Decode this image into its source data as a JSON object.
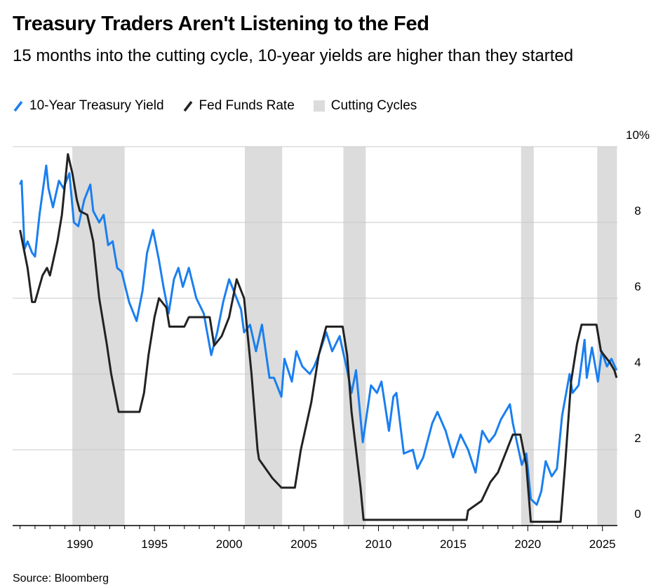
{
  "chart_data": {
    "type": "line",
    "title": "Treasury Traders Aren't Listening to the Fed",
    "subtitle": "15 months into the cutting cycle, 10-year yields are higher than they started",
    "source": "Source: Bloomberg",
    "xlim": [
      1985.5,
      2026
    ],
    "xticks": [
      1990,
      1995,
      2000,
      2005,
      2010,
      2015,
      2020,
      2025
    ],
    "xminorticks": [
      1986,
      1987,
      1988,
      1989,
      1991,
      1992,
      1993,
      1994,
      1996,
      1997,
      1998,
      1999,
      2001,
      2002,
      2003,
      2004,
      2006,
      2007,
      2008,
      2009,
      2011,
      2012,
      2013,
      2014,
      2016,
      2017,
      2018,
      2019,
      2021,
      2022,
      2023,
      2024
    ],
    "ylim": [
      0,
      10
    ],
    "yticks": [
      0,
      2,
      4,
      6,
      8,
      {
        "value": 10,
        "label": "10%"
      }
    ],
    "grid": true,
    "shading": {
      "name": "Cutting Cycles",
      "color": "#dcdcdc",
      "ranges": [
        [
          1989.5,
          1993.0
        ],
        [
          2001.05,
          2003.55
        ],
        [
          2007.65,
          2009.15
        ],
        [
          2019.55,
          2020.4
        ],
        [
          2024.65,
          2025.97
        ]
      ]
    },
    "series": [
      {
        "name": "10-Year Treasury Yield",
        "color": "#1a7ff0",
        "x": [
          1986.0,
          1986.1,
          1986.3,
          1986.5,
          1986.8,
          1987.0,
          1987.3,
          1987.75,
          1987.9,
          1988.2,
          1988.6,
          1988.9,
          1989.3,
          1989.6,
          1989.9,
          1990.3,
          1990.7,
          1990.9,
          1991.3,
          1991.6,
          1991.9,
          1992.2,
          1992.5,
          1992.8,
          1993.3,
          1993.8,
          1994.2,
          1994.5,
          1994.9,
          1995.3,
          1995.6,
          1995.95,
          1996.3,
          1996.6,
          1996.9,
          1997.3,
          1997.8,
          1998.3,
          1998.8,
          1999.2,
          1999.6,
          2000.0,
          2000.3,
          2000.8,
          2001.0,
          2001.4,
          2001.8,
          2002.2,
          2002.7,
          2003.0,
          2003.5,
          2003.7,
          2004.2,
          2004.5,
          2004.9,
          2005.4,
          2005.7,
          2006.0,
          2006.5,
          2006.9,
          2007.4,
          2007.9,
          2008.2,
          2008.5,
          2008.95,
          2009.5,
          2009.9,
          2010.2,
          2010.7,
          2011.0,
          2011.2,
          2011.7,
          2012.3,
          2012.6,
          2013.0,
          2013.6,
          2013.95,
          2014.5,
          2015.0,
          2015.5,
          2016.0,
          2016.5,
          2016.95,
          2017.4,
          2017.8,
          2018.2,
          2018.8,
          2019.0,
          2019.6,
          2019.9,
          2020.2,
          2020.6,
          2020.9,
          2021.2,
          2021.6,
          2021.95,
          2022.3,
          2022.8,
          2023.0,
          2023.4,
          2023.8,
          2023.95,
          2024.3,
          2024.7,
          2024.95,
          2025.3,
          2025.6,
          2025.95
        ],
        "values": [
          9.0,
          9.1,
          7.3,
          7.5,
          7.2,
          7.1,
          8.2,
          9.5,
          8.9,
          8.4,
          9.1,
          8.9,
          9.3,
          8.0,
          7.9,
          8.6,
          9.0,
          8.3,
          8.0,
          8.2,
          7.4,
          7.5,
          6.8,
          6.7,
          5.9,
          5.4,
          6.2,
          7.2,
          7.8,
          7.0,
          6.3,
          5.6,
          6.5,
          6.8,
          6.3,
          6.8,
          6.0,
          5.6,
          4.5,
          5.1,
          5.9,
          6.5,
          6.2,
          5.7,
          5.1,
          5.3,
          4.6,
          5.3,
          3.9,
          3.9,
          3.4,
          4.4,
          3.8,
          4.6,
          4.2,
          4.0,
          4.2,
          4.5,
          5.1,
          4.6,
          5.0,
          4.1,
          3.5,
          4.1,
          2.2,
          3.7,
          3.5,
          3.8,
          2.5,
          3.4,
          3.5,
          1.9,
          2.0,
          1.5,
          1.8,
          2.7,
          3.0,
          2.5,
          1.8,
          2.4,
          2.0,
          1.4,
          2.5,
          2.2,
          2.4,
          2.8,
          3.2,
          2.7,
          1.6,
          1.9,
          0.7,
          0.55,
          0.9,
          1.7,
          1.3,
          1.5,
          2.9,
          4.0,
          3.5,
          3.7,
          4.9,
          3.9,
          4.7,
          3.8,
          4.6,
          4.2,
          4.4,
          4.1
        ]
      },
      {
        "name": "Fed Funds Rate",
        "color": "#222222",
        "x": [
          1986.0,
          1986.5,
          1986.8,
          1987.0,
          1987.5,
          1987.8,
          1988.0,
          1988.5,
          1988.8,
          1989.2,
          1989.5,
          1989.8,
          1990.0,
          1990.5,
          1990.9,
          1991.3,
          1991.8,
          1992.1,
          1992.6,
          1993.0,
          1994.0,
          1994.3,
          1994.6,
          1995.0,
          1995.3,
          1995.8,
          1996.0,
          1997.0,
          1997.3,
          1998.7,
          1999.0,
          1999.5,
          2000.0,
          2000.5,
          2001.0,
          2001.5,
          2001.9,
          2002.0,
          2002.9,
          2003.5,
          2004.4,
          2004.8,
          2005.5,
          2006.0,
          2006.5,
          2007.6,
          2007.9,
          2008.2,
          2008.5,
          2008.8,
          2009.0,
          2015.9,
          2016.0,
          2016.9,
          2017.5,
          2018.0,
          2018.5,
          2019.0,
          2019.5,
          2019.9,
          2020.2,
          2022.2,
          2022.5,
          2022.9,
          2023.3,
          2023.6,
          2024.6,
          2024.9,
          2025.5,
          2025.8,
          2025.95
        ],
        "values": [
          7.8,
          6.8,
          5.9,
          5.9,
          6.6,
          6.8,
          6.6,
          7.5,
          8.2,
          9.8,
          9.3,
          8.6,
          8.3,
          8.2,
          7.5,
          6.0,
          4.8,
          4.0,
          3.0,
          3.0,
          3.0,
          3.5,
          4.5,
          5.5,
          6.0,
          5.75,
          5.25,
          5.25,
          5.5,
          5.5,
          4.75,
          5.0,
          5.5,
          6.5,
          6.0,
          4.0,
          2.0,
          1.75,
          1.25,
          1.0,
          1.0,
          2.0,
          3.25,
          4.5,
          5.25,
          5.25,
          4.5,
          3.0,
          2.0,
          1.0,
          0.15,
          0.15,
          0.4,
          0.65,
          1.15,
          1.4,
          1.9,
          2.4,
          2.4,
          1.6,
          0.1,
          0.1,
          1.6,
          3.8,
          4.8,
          5.3,
          5.3,
          4.6,
          4.3,
          4.1,
          3.9
        ]
      }
    ]
  }
}
